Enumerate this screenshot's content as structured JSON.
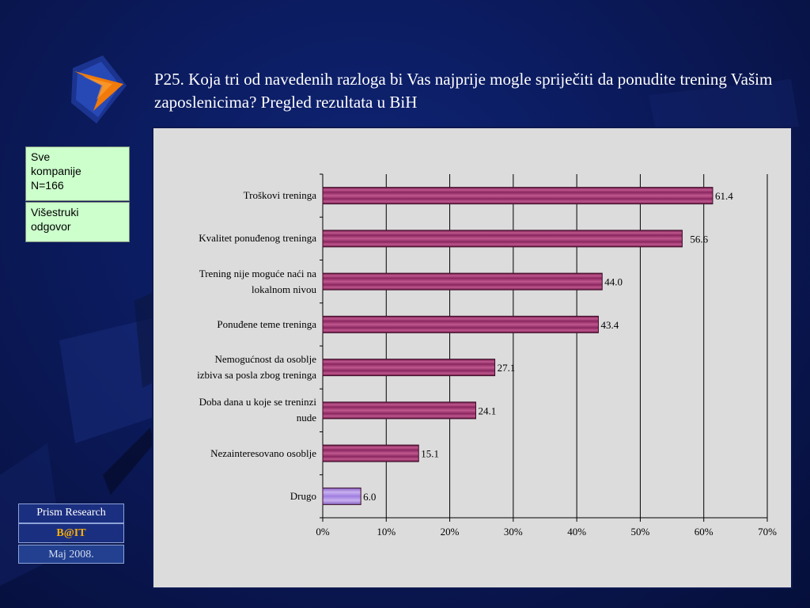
{
  "title": "P25. Koja tri od navedenih razloga bi Vas najprije mogle spriječiti da ponudite trening Vašim zaposlenicima? Pregled rezultata u BiH",
  "info": {
    "sample_lines": [
      "Sve",
      "kompanije",
      "N=166"
    ],
    "answer_lines": [
      "Višestruki",
      "odgovor"
    ]
  },
  "footer": {
    "company": "Prism Research",
    "brand": "B@IT",
    "date": "Maj 2008."
  },
  "colors": {
    "bar_main": "#9e2f6e",
    "bar_highlight": "#a883dd",
    "chart_bg": "#dcdcdc",
    "slide_bg": "#0b1a5c",
    "info_bg": "#ccffcc"
  },
  "chart_data": {
    "type": "bar",
    "orientation": "horizontal",
    "categories": [
      "Troškovi treninga",
      "Kvalitet ponuđenog treninga",
      "Trening nije moguće naći na lokalnom nivou",
      "Ponuđene teme treninga",
      "Nemogućnost da osoblje izbiva sa posla zbog treninga",
      "Doba dana u koje se treninzi nude",
      "Nezainteresovano osoblje",
      "Drugo"
    ],
    "category_lines": [
      [
        "Troškovi treninga"
      ],
      [
        "Kvalitet ponuđenog treninga"
      ],
      [
        "Trening nije moguće naći na",
        "lokalnom nivou"
      ],
      [
        "Ponuđene teme treninga"
      ],
      [
        "Nemogućnost da osoblje",
        "izbiva sa posla zbog treninga"
      ],
      [
        "Doba dana u koje se treninzi",
        "nude"
      ],
      [
        "Nezainteresovano osoblje"
      ],
      [
        "Drugo"
      ]
    ],
    "values": [
      61.4,
      56.6,
      44.0,
      43.4,
      27.1,
      24.1,
      15.1,
      6.0
    ],
    "value_labels": [
      "61.4",
      "56.6",
      "44.0",
      "43.4",
      "27.1",
      "24.1",
      "15.1",
      "6.0"
    ],
    "xlim": [
      0,
      70
    ],
    "xticks": [
      "0%",
      "10%",
      "20%",
      "30%",
      "40%",
      "50%",
      "60%",
      "70%"
    ],
    "grid": "vertical",
    "legend": "none"
  }
}
